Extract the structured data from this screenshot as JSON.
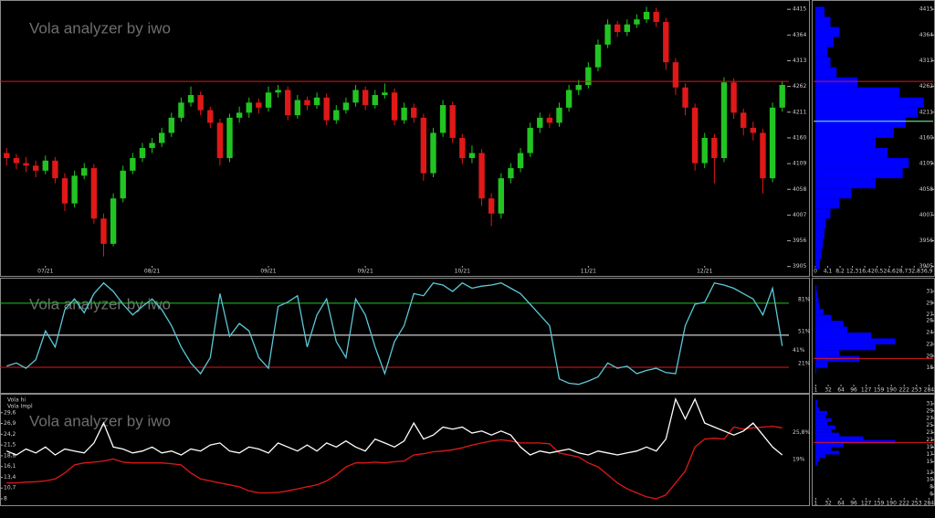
{
  "chart_data": [
    {
      "type": "candlestick",
      "title": "Vola analyzer by iwo",
      "color_up": "#22c422",
      "color_down": "#e01818",
      "open": [
        4130,
        4120,
        4110,
        4105,
        4095,
        4115,
        4080,
        4030,
        4085,
        4100,
        4000,
        3950,
        4040,
        4095,
        4120,
        4140,
        4150,
        4170,
        4200,
        4230,
        4245,
        4215,
        4190,
        4120,
        4200,
        4210,
        4230,
        4220,
        4250,
        4255,
        4205,
        4235,
        4225,
        4240,
        4195,
        4215,
        4230,
        4255,
        4225,
        4245,
        4250,
        4195,
        4220,
        4200,
        4090,
        4170,
        4225,
        4160,
        4120,
        4130,
        4040,
        4010,
        4080,
        4100,
        4130,
        4180,
        4200,
        4190,
        4220,
        4255,
        4265,
        4300,
        4345,
        4385,
        4370,
        4385,
        4395,
        4410,
        4390,
        4310,
        4260,
        4220,
        4110,
        4160,
        4120,
        4270,
        4210,
        4180,
        4170,
        4080,
        4220
      ],
      "high": [
        4140,
        4128,
        4122,
        4115,
        4125,
        4122,
        4090,
        4095,
        4110,
        4108,
        4010,
        4050,
        4105,
        4130,
        4150,
        4160,
        4180,
        4210,
        4240,
        4262,
        4252,
        4222,
        4198,
        4208,
        4222,
        4240,
        4238,
        4262,
        4265,
        4262,
        4245,
        4242,
        4250,
        4248,
        4225,
        4240,
        4265,
        4262,
        4255,
        4268,
        4258,
        4230,
        4228,
        4208,
        4180,
        4235,
        4232,
        4168,
        4145,
        4138,
        4050,
        4090,
        4110,
        4140,
        4190,
        4210,
        4208,
        4230,
        4265,
        4275,
        4310,
        4355,
        4395,
        4392,
        4395,
        4405,
        4420,
        4418,
        4398,
        4318,
        4268,
        4228,
        4170,
        4168,
        4280,
        4278,
        4218,
        4192,
        4178,
        4230,
        4272
      ],
      "low": [
        4105,
        4098,
        4092,
        4082,
        4088,
        4070,
        4015,
        4022,
        4078,
        3990,
        3925,
        3945,
        4032,
        4088,
        4112,
        4130,
        4142,
        4162,
        4192,
        4222,
        4205,
        4180,
        4105,
        4112,
        4190,
        4200,
        4208,
        4212,
        4240,
        4195,
        4198,
        4215,
        4218,
        4185,
        4188,
        4208,
        4222,
        4215,
        4218,
        4238,
        4185,
        4188,
        4190,
        4075,
        4082,
        4162,
        4150,
        4108,
        4110,
        4025,
        3985,
        4000,
        4070,
        4092,
        4122,
        4170,
        4180,
        4182,
        4212,
        4245,
        4258,
        4292,
        4338,
        4360,
        4362,
        4378,
        4388,
        4380,
        4295,
        4245,
        4205,
        4095,
        4100,
        4070,
        4112,
        4198,
        4165,
        4155,
        4050,
        4072,
        4212
      ],
      "close": [
        4120,
        4110,
        4105,
        4095,
        4115,
        4080,
        4030,
        4085,
        4100,
        4000,
        3950,
        4040,
        4095,
        4120,
        4140,
        4150,
        4170,
        4200,
        4230,
        4245,
        4215,
        4190,
        4120,
        4200,
        4210,
        4230,
        4220,
        4250,
        4255,
        4205,
        4235,
        4225,
        4240,
        4195,
        4215,
        4230,
        4255,
        4225,
        4245,
        4250,
        4195,
        4220,
        4200,
        4090,
        4170,
        4225,
        4160,
        4120,
        4130,
        4040,
        4010,
        4080,
        4100,
        4130,
        4180,
        4200,
        4190,
        4220,
        4255,
        4265,
        4300,
        4345,
        4385,
        4370,
        4385,
        4395,
        4410,
        4390,
        4310,
        4260,
        4220,
        4110,
        4160,
        4120,
        4270,
        4210,
        4180,
        4170,
        4080,
        4220,
        4265
      ],
      "xlim": [
        -0.5,
        80.5
      ],
      "xticks": [
        {
          "value": 4,
          "label": "07/21"
        },
        {
          "value": 15,
          "label": "08/21"
        },
        {
          "value": 27,
          "label": "09/21"
        },
        {
          "value": 37,
          "label": "09/21"
        },
        {
          "value": 47,
          "label": "10/21"
        },
        {
          "value": 60,
          "label": "11/21"
        },
        {
          "value": 72,
          "label": "12/21"
        }
      ],
      "ylim": [
        3890,
        4428
      ],
      "yticks": [
        3905,
        3956,
        4007,
        4058,
        4109,
        4160,
        4211,
        4262,
        4313,
        4364,
        4415
      ],
      "hlines": [
        {
          "value": 4272,
          "color": "#e01818"
        }
      ]
    },
    {
      "type": "histogram",
      "orientation": "horizontal",
      "color": "#0000ff",
      "bins": [
        3900,
        3920,
        3940,
        3960,
        3980,
        4000,
        4020,
        4040,
        4060,
        4080,
        4100,
        4120,
        4140,
        4160,
        4180,
        4200,
        4220,
        4240,
        4260,
        4280,
        4300,
        4320,
        4340,
        4360,
        4380,
        4400,
        4420
      ],
      "values": [
        1.5,
        2,
        2.5,
        3,
        3.5,
        5,
        8,
        12,
        20,
        29,
        31,
        24,
        20,
        26,
        30,
        34,
        36,
        28,
        14,
        7,
        5,
        4,
        6,
        8,
        5,
        3
      ],
      "xlim": [
        0,
        38.5
      ],
      "xticks": [
        0,
        {
          "value": 4.1,
          "label": "4,1"
        },
        {
          "value": 8.2,
          "label": "8,2"
        },
        {
          "value": 12.3,
          "label": "12,3"
        },
        {
          "value": 16.4,
          "label": "16,4"
        },
        {
          "value": 20.5,
          "label": "20,5"
        },
        {
          "value": 24.6,
          "label": "24,6"
        },
        {
          "value": 28.7,
          "label": "28,7"
        },
        {
          "value": 32.8,
          "label": "32,8"
        },
        {
          "value": 36.9,
          "label": "36,9"
        }
      ],
      "ylim": [
        3890,
        4428
      ],
      "yticks": [
        3905,
        3956,
        4007,
        4058,
        4109,
        4160,
        4211,
        4262,
        4313,
        4364,
        4415
      ],
      "hlines": [
        {
          "value": 4272,
          "color": "#e01818"
        },
        {
          "value": 4193,
          "color": "#7fffa0"
        }
      ]
    },
    {
      "type": "line",
      "title": "Vola analyzer by iwo",
      "xlim": [
        -0.5,
        80.5
      ],
      "ylim": [
        -3,
        104
      ],
      "series": [
        {
          "color": "#5bc8d8",
          "values": [
            22,
            25,
            20,
            28,
            55,
            40,
            75,
            85,
            72,
            90,
            100,
            92,
            80,
            70,
            78,
            85,
            75,
            60,
            40,
            25,
            15,
            30,
            90,
            50,
            62,
            55,
            30,
            20,
            78,
            82,
            88,
            40,
            70,
            85,
            45,
            30,
            85,
            70,
            40,
            15,
            45,
            60,
            90,
            88,
            100,
            98,
            92,
            100,
            95,
            97,
            98,
            100,
            95,
            90,
            80,
            70,
            60,
            10,
            6,
            5,
            8,
            12,
            25,
            20,
            22,
            15,
            18,
            20,
            16,
            15,
            60,
            80,
            82,
            100,
            98,
            95,
            90,
            85,
            70,
            95,
            41
          ],
          "last_label": {
            "value": 41,
            "label": "41%"
          }
        }
      ],
      "levels": [
        {
          "value": 81,
          "label": "81%",
          "color": "#22c422"
        },
        {
          "value": 51,
          "label": "51%",
          "color": "#ffffff"
        },
        {
          "value": 21,
          "label": "21%",
          "color": "#e01818"
        }
      ]
    },
    {
      "type": "histogram",
      "orientation": "horizontal",
      "color": "#0000ff",
      "bins": [
        16,
        17,
        18,
        19,
        20,
        21,
        22,
        23,
        24,
        25,
        26,
        27,
        28,
        29,
        30,
        31,
        32
      ],
      "values": [
        0,
        2,
        30,
        110,
        60,
        150,
        200,
        140,
        80,
        70,
        40,
        20,
        10,
        8,
        5,
        3
      ],
      "xlim": [
        0,
        290
      ],
      "xticks": [
        1,
        32,
        64,
        96,
        127,
        159,
        190,
        222,
        253,
        284
      ],
      "ylim": [
        15,
        33
      ],
      "yticks": [
        18,
        20,
        22,
        24,
        26,
        27,
        29,
        31
      ],
      "hlines": [
        {
          "value": 19.6,
          "color": "#e01818"
        }
      ]
    },
    {
      "type": "line",
      "title": "Vola analyzer by iwo",
      "xlim": [
        -0.5,
        80.5
      ],
      "ylim": [
        6.4,
        33.9
      ],
      "yticks": [
        8,
        {
          "value": 10.7,
          "label": "10,7"
        },
        {
          "value": 13.4,
          "label": "13,4"
        },
        {
          "value": 16.1,
          "label": "16,1"
        },
        {
          "value": 18.8,
          "label": "18,8"
        },
        {
          "value": 21.5,
          "label": "21,5"
        },
        {
          "value": 24.2,
          "label": "24,2"
        },
        {
          "value": 26.9,
          "label": "26,9"
        },
        {
          "value": 29.6,
          "label": "29,6"
        }
      ],
      "series": [
        {
          "name": "Vola hi",
          "color": "#e01818",
          "values": [
            12,
            12,
            12.2,
            12.3,
            12.5,
            13,
            14.5,
            16.5,
            17,
            17.2,
            17.5,
            18,
            17.2,
            17,
            17,
            17,
            17,
            16.8,
            16.5,
            14.5,
            13,
            12.5,
            12,
            11.5,
            11,
            10,
            9.5,
            9.5,
            9.6,
            10,
            10.5,
            11,
            11.5,
            12.5,
            14,
            16,
            17,
            17,
            17.2,
            17,
            17.3,
            17.5,
            19,
            19.3,
            19.8,
            20,
            20.3,
            20.8,
            21.5,
            22,
            22.5,
            22.8,
            22.5,
            22,
            22,
            22,
            21.8,
            19.5,
            19,
            18.5,
            17,
            16,
            14,
            12,
            10.5,
            9.5,
            8.5,
            8,
            9,
            12,
            15,
            21,
            23,
            23.2,
            23,
            26,
            25.5,
            25.8,
            26,
            26.2,
            25.8
          ],
          "last_label": {
            "value": 25.8,
            "label": "25,8%"
          }
        },
        {
          "name": "Vola Impl",
          "color": "#ffffff",
          "values": [
            20,
            19,
            20.5,
            19.5,
            21,
            19,
            20.5,
            20,
            19.5,
            22,
            27,
            21,
            20.5,
            19.5,
            20,
            21,
            19.5,
            20,
            19,
            20.5,
            20,
            21.5,
            22,
            20,
            19.5,
            21,
            20.5,
            19.5,
            22,
            21,
            20,
            21.5,
            20,
            22,
            21,
            22.5,
            21,
            20,
            23,
            22,
            21,
            22.5,
            27,
            23,
            24,
            26,
            25.5,
            26,
            24.5,
            25,
            24,
            25,
            24,
            21,
            19,
            20,
            19.5,
            20,
            20.5,
            19.5,
            19,
            20,
            19.5,
            19,
            19.5,
            20,
            21,
            20,
            23,
            33,
            28,
            33,
            27,
            26,
            25,
            24,
            25,
            27,
            24,
            21,
            19
          ],
          "last_label": {
            "value": 19,
            "label": "19%"
          }
        }
      ]
    },
    {
      "type": "histogram",
      "orientation": "horizontal",
      "color": "#0000ff",
      "bins": [
        14,
        15,
        16,
        17,
        18,
        19,
        20,
        21,
        22,
        23,
        24,
        25,
        26,
        27,
        28,
        29,
        30,
        31,
        32
      ],
      "values": [
        5,
        10,
        25,
        60,
        40,
        70,
        200,
        120,
        60,
        40,
        50,
        30,
        40,
        25,
        30,
        10,
        5,
        5
      ],
      "xlim": [
        0,
        290
      ],
      "xticks": [
        1,
        32,
        64,
        96,
        127,
        159,
        190,
        222,
        253,
        284
      ],
      "ylim": [
        5,
        33
      ],
      "yticks": [
        6,
        8,
        10,
        12,
        15,
        17,
        19,
        21,
        23,
        25,
        27,
        29,
        31
      ],
      "hlines": [
        {
          "value": 20.3,
          "color": "#e01818"
        }
      ]
    }
  ]
}
